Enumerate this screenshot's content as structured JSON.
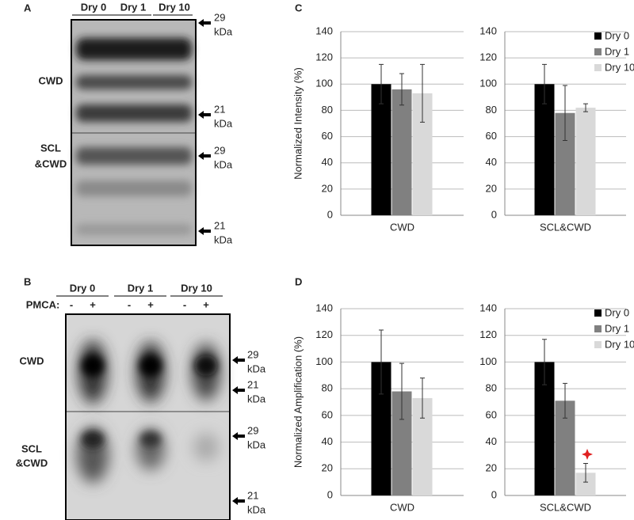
{
  "chart_data": [
    {
      "type": "bar",
      "categories": [
        "CWD"
      ],
      "ylabel": "Normalized Intensity (%)",
      "series": [
        {
          "color": "#000000",
          "values": [
            100
          ],
          "errors": [
            15
          ]
        },
        {
          "color": "#808080",
          "values": [
            96
          ],
          "errors": [
            12
          ]
        },
        {
          "color": "#d9d9d9",
          "values": [
            93
          ],
          "errors": [
            22
          ]
        }
      ],
      "ylim": [
        0,
        140
      ],
      "yticks": [
        0,
        20,
        40,
        60,
        80,
        100,
        120,
        140
      ],
      "grid": true
    },
    {
      "type": "bar",
      "categories": [
        "SCL&CWD"
      ],
      "legend": "upper right",
      "series": [
        {
          "name": "Dry 0",
          "color": "#000000",
          "values": [
            100
          ],
          "errors": [
            15
          ]
        },
        {
          "name": "Dry 1",
          "color": "#808080",
          "values": [
            78
          ],
          "errors": [
            21
          ]
        },
        {
          "name": "Dry 10",
          "color": "#d9d9d9",
          "values": [
            82
          ],
          "errors": [
            3
          ]
        }
      ],
      "ylim": [
        0,
        140
      ],
      "yticks": [
        0,
        20,
        40,
        60,
        80,
        100,
        120,
        140
      ],
      "grid": true
    },
    {
      "type": "bar",
      "categories": [
        "CWD"
      ],
      "ylabel": "Normalized Amplification (%)",
      "series": [
        {
          "color": "#000000",
          "values": [
            100
          ],
          "errors": [
            24
          ]
        },
        {
          "color": "#808080",
          "values": [
            78
          ],
          "errors": [
            21
          ]
        },
        {
          "color": "#d9d9d9",
          "values": [
            73
          ],
          "errors": [
            15
          ]
        }
      ],
      "ylim": [
        0,
        140
      ],
      "yticks": [
        0,
        20,
        40,
        60,
        80,
        100,
        120,
        140
      ],
      "grid": true
    },
    {
      "type": "bar",
      "categories": [
        "SCL&CWD"
      ],
      "legend": "upper right",
      "series": [
        {
          "name": "Dry 0",
          "color": "#000000",
          "values": [
            100
          ],
          "errors": [
            17
          ]
        },
        {
          "name": "Dry 1",
          "color": "#808080",
          "values": [
            71
          ],
          "errors": [
            13
          ]
        },
        {
          "name": "Dry 10",
          "color": "#d9d9d9",
          "values": [
            17
          ],
          "errors": [
            7
          ]
        }
      ],
      "ylim": [
        0,
        140
      ],
      "yticks": [
        0,
        20,
        40,
        60,
        80,
        100,
        120,
        140
      ],
      "grid": true
    }
  ],
  "blot_a": {
    "label": "A",
    "lanes": [
      "Dry 0",
      "Dry 1",
      "Dry 10"
    ],
    "rows": [
      [
        "CWD"
      ],
      [
        "SCL",
        "&CWD"
      ]
    ],
    "markers": [
      [
        "29",
        "kDa"
      ],
      [
        "21",
        "kDa"
      ],
      [
        "29",
        "kDa"
      ],
      [
        "21",
        "kDa"
      ]
    ]
  },
  "blot_b": {
    "label": "B",
    "lanes": [
      "Dry 0",
      "Dry 1",
      "Dry 10"
    ],
    "treatment_label": "PMCA:",
    "treatments": [
      "-",
      "+",
      "-",
      "+",
      "-",
      "+"
    ],
    "rows": [
      [
        "CWD"
      ],
      [
        "SCL",
        "&CWD"
      ]
    ],
    "markers": [
      [
        "29",
        "kDa"
      ],
      [
        "21",
        "kDa"
      ],
      [
        "29",
        "kDa"
      ],
      [
        "21",
        "kDa"
      ]
    ]
  },
  "panel_labels": [
    "C",
    "D"
  ]
}
